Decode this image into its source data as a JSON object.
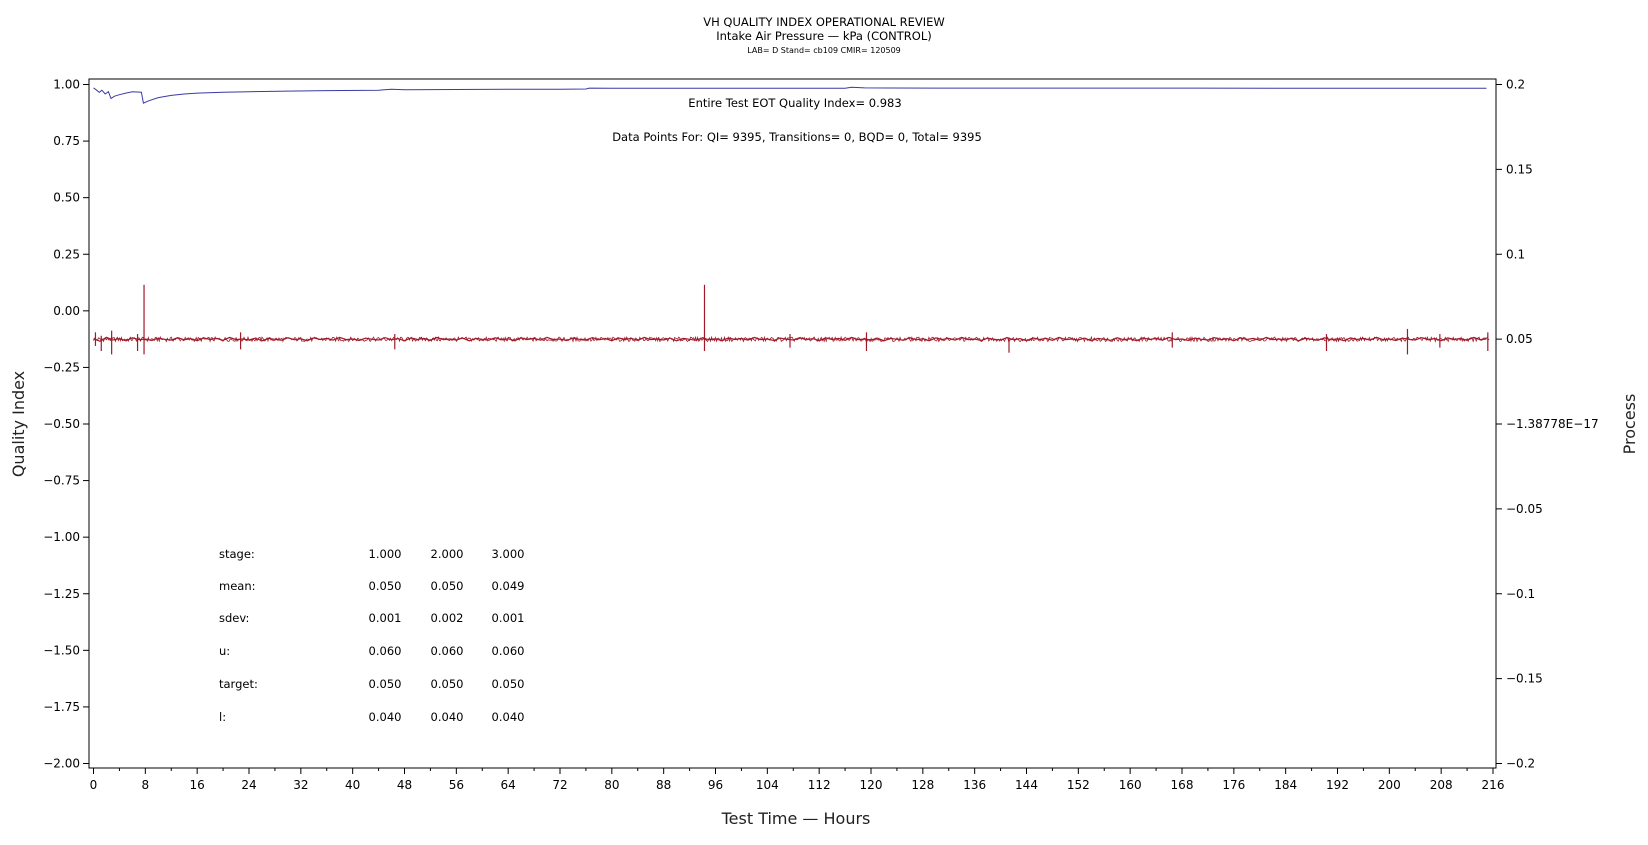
{
  "chart_data": {
    "type": "line",
    "title": "VH QUALITY INDEX OPERATIONAL REVIEW",
    "subtitle": "Intake Air Pressure — kPa (CONTROL)",
    "subtitle2": "LAB= D Stand= cb109 CMIR= 120509",
    "xlabel": "Test Time — Hours",
    "ylabel": "Quality Index",
    "y2label": "Process",
    "xlim": [
      0,
      216
    ],
    "ylim": [
      -2.0,
      1.0
    ],
    "y2lim": [
      -0.2,
      0.2
    ],
    "x_ticks": [
      0,
      8,
      16,
      24,
      32,
      40,
      48,
      56,
      64,
      72,
      80,
      88,
      96,
      104,
      112,
      120,
      128,
      136,
      144,
      152,
      160,
      168,
      176,
      184,
      192,
      200,
      208,
      216
    ],
    "y_ticks": [
      1.0,
      0.75,
      0.5,
      0.25,
      0.0,
      -0.25,
      -0.5,
      -0.75,
      -1.0,
      -1.25,
      -1.5,
      -1.75,
      -2.0
    ],
    "y_tick_labels": [
      "1.00",
      "0.75",
      "0.50",
      "0.25",
      "0.00",
      "−0.25",
      "−0.50",
      "−0.75",
      "−1.00",
      "−1.25",
      "−1.50",
      "−1.75",
      "−2.00"
    ],
    "y2_ticks": [
      0.2,
      0.15,
      0.1,
      0.05,
      0.0,
      -0.05,
      -0.1,
      -0.15,
      -0.2
    ],
    "y2_tick_labels": [
      "0.2",
      "0.15",
      "0.1",
      "0.05",
      "−1.38778E−17",
      "−0.05",
      "−0.1",
      "−0.15",
      "−0.2"
    ],
    "grid": false,
    "annotations": {
      "eot": "Entire Test EOT Quality Index=   0.983",
      "points": "Data Points For: QI=  9395, Transitions=     0, BQD=     0, Total=  9395"
    },
    "stats": {
      "labels": [
        "stage:",
        "mean:",
        "sdev:",
        "u:",
        "target:",
        "l:"
      ],
      "columns": [
        [
          "1.000",
          "0.050",
          "0.001",
          "0.060",
          "0.050",
          "0.040"
        ],
        [
          "2.000",
          "0.050",
          "0.002",
          "0.060",
          "0.050",
          "0.040"
        ],
        [
          "3.000",
          "0.049",
          "0.001",
          "0.060",
          "0.050",
          "0.040"
        ]
      ]
    },
    "series": [
      {
        "axis": "left",
        "color": "#3a3aa6",
        "points": [
          [
            0,
            0.985
          ],
          [
            0.5,
            0.975
          ],
          [
            0.9,
            0.965
          ],
          [
            1.3,
            0.975
          ],
          [
            1.8,
            0.958
          ],
          [
            2.3,
            0.968
          ],
          [
            2.7,
            0.938
          ],
          [
            3.2,
            0.948
          ],
          [
            4.0,
            0.955
          ],
          [
            5.0,
            0.962
          ],
          [
            6.0,
            0.968
          ],
          [
            7.4,
            0.966
          ],
          [
            7.7,
            0.918
          ],
          [
            8.5,
            0.928
          ],
          [
            10,
            0.942
          ],
          [
            12,
            0.952
          ],
          [
            14,
            0.958
          ],
          [
            16,
            0.962
          ],
          [
            20,
            0.966
          ],
          [
            24,
            0.968
          ],
          [
            30,
            0.971
          ],
          [
            36,
            0.973
          ],
          [
            44,
            0.975
          ],
          [
            46,
            0.979
          ],
          [
            48,
            0.977
          ],
          [
            56,
            0.978
          ],
          [
            64,
            0.979
          ],
          [
            72,
            0.979
          ],
          [
            76,
            0.98
          ],
          [
            76.5,
            0.984
          ],
          [
            80,
            0.983
          ],
          [
            96,
            0.983
          ],
          [
            116,
            0.983
          ],
          [
            117,
            0.988
          ],
          [
            119,
            0.985
          ],
          [
            130,
            0.984
          ],
          [
            150,
            0.984
          ],
          [
            170,
            0.984
          ],
          [
            190,
            0.983
          ],
          [
            210,
            0.983
          ],
          [
            215,
            0.983
          ]
        ]
      },
      {
        "axis": "right",
        "color": "#a01a2a",
        "points": [
          [
            0,
            0.0502
          ],
          [
            1.0,
            0.0488
          ],
          [
            2.0,
            0.0511
          ],
          [
            3.0,
            0.0495
          ],
          [
            4.0,
            0.0503
          ],
          [
            5.0,
            0.049
          ],
          [
            6.0,
            0.0508
          ],
          [
            7.0,
            0.0497
          ],
          [
            8.0,
            0.05
          ],
          [
            9.0,
            0.0492
          ],
          [
            10.0,
            0.0506
          ],
          [
            11.0,
            0.0499
          ],
          [
            12.0,
            0.0494
          ],
          [
            13.0,
            0.0509
          ],
          [
            14.0,
            0.0496
          ],
          [
            15.0,
            0.0503
          ],
          [
            16.0,
            0.0491
          ],
          [
            17.0,
            0.0507
          ],
          [
            18.0,
            0.0498
          ],
          [
            19.0,
            0.0504
          ],
          [
            20.0,
            0.0493
          ],
          [
            21.0,
            0.051
          ],
          [
            22.0,
            0.0497
          ],
          [
            23.0,
            0.0501
          ],
          [
            24.0,
            0.0495
          ],
          [
            25.0,
            0.0506
          ],
          [
            26.0,
            0.049
          ],
          [
            27.0,
            0.0504
          ],
          [
            28.0,
            0.0499
          ],
          [
            29.0,
            0.0493
          ],
          [
            30.0,
            0.0508
          ],
          [
            31.0,
            0.0496
          ],
          [
            32.0,
            0.0502
          ],
          [
            33.0,
            0.0491
          ],
          [
            34.0,
            0.0507
          ],
          [
            35.0,
            0.0498
          ],
          [
            36.0,
            0.0504
          ],
          [
            37.0,
            0.0494
          ],
          [
            38.0,
            0.051
          ],
          [
            39.0,
            0.0497
          ],
          [
            40.0,
            0.0501
          ],
          [
            41.0,
            0.0492
          ],
          [
            42.0,
            0.0506
          ],
          [
            43.0,
            0.0499
          ],
          [
            44.0,
            0.0495
          ],
          [
            45.0,
            0.0509
          ],
          [
            46.0,
            0.0496
          ],
          [
            47.0,
            0.0503
          ],
          [
            48.0,
            0.0491
          ],
          [
            49.0,
            0.0507
          ],
          [
            50.0,
            0.0498
          ],
          [
            51.0,
            0.0504
          ],
          [
            52.0,
            0.0493
          ],
          [
            53.0,
            0.051
          ],
          [
            54.0,
            0.0497
          ],
          [
            55.0,
            0.0501
          ],
          [
            56.0,
            0.0495
          ],
          [
            57.0,
            0.0506
          ],
          [
            58.0,
            0.049
          ],
          [
            59.0,
            0.0504
          ],
          [
            60.0,
            0.0499
          ],
          [
            61.0,
            0.0493
          ],
          [
            62.0,
            0.0508
          ],
          [
            63.0,
            0.0496
          ],
          [
            64.0,
            0.0502
          ],
          [
            65.0,
            0.0491
          ],
          [
            66.0,
            0.0507
          ],
          [
            67.0,
            0.0498
          ],
          [
            68.0,
            0.0504
          ],
          [
            69.0,
            0.0494
          ],
          [
            70.0,
            0.051
          ],
          [
            71.0,
            0.0497
          ],
          [
            72.0,
            0.0501
          ],
          [
            73.0,
            0.0492
          ],
          [
            74.0,
            0.0506
          ],
          [
            75.0,
            0.0499
          ],
          [
            76.0,
            0.0495
          ],
          [
            77.0,
            0.0509
          ],
          [
            78.0,
            0.0496
          ],
          [
            79.0,
            0.0503
          ],
          [
            80.0,
            0.0491
          ],
          [
            81.0,
            0.0507
          ],
          [
            82.0,
            0.0498
          ],
          [
            83.0,
            0.0504
          ],
          [
            84.0,
            0.0493
          ],
          [
            85.0,
            0.051
          ],
          [
            86.0,
            0.0497
          ],
          [
            87.0,
            0.0501
          ],
          [
            88.0,
            0.0495
          ],
          [
            89.0,
            0.0506
          ],
          [
            90.0,
            0.049
          ],
          [
            91.0,
            0.0504
          ],
          [
            92.0,
            0.0499
          ],
          [
            93.0,
            0.0493
          ],
          [
            94.0,
            0.0508
          ],
          [
            95.0,
            0.0496
          ],
          [
            96.0,
            0.0502
          ],
          [
            97.0,
            0.0491
          ],
          [
            98.0,
            0.0507
          ],
          [
            99.0,
            0.0498
          ],
          [
            100.0,
            0.0504
          ],
          [
            101.0,
            0.0494
          ],
          [
            102.0,
            0.051
          ],
          [
            103.0,
            0.0497
          ],
          [
            104.0,
            0.0501
          ],
          [
            105.0,
            0.0492
          ],
          [
            106.0,
            0.0506
          ],
          [
            107.0,
            0.0499
          ],
          [
            108.0,
            0.0495
          ],
          [
            109.0,
            0.0509
          ],
          [
            110.0,
            0.0496
          ],
          [
            111.0,
            0.0503
          ],
          [
            112.0,
            0.0491
          ],
          [
            113.0,
            0.0507
          ],
          [
            114.0,
            0.0498
          ],
          [
            115.0,
            0.0504
          ],
          [
            116.0,
            0.0493
          ],
          [
            117.0,
            0.051
          ],
          [
            118.0,
            0.0497
          ],
          [
            119.0,
            0.0501
          ],
          [
            120.0,
            0.0495
          ],
          [
            121.0,
            0.0506
          ],
          [
            122.0,
            0.049
          ],
          [
            123.0,
            0.0504
          ],
          [
            124.0,
            0.0499
          ],
          [
            125.0,
            0.0493
          ],
          [
            126.0,
            0.0508
          ],
          [
            127.0,
            0.0496
          ],
          [
            128.0,
            0.0502
          ],
          [
            129.0,
            0.0491
          ],
          [
            130.0,
            0.0507
          ],
          [
            131.0,
            0.0498
          ],
          [
            132.0,
            0.0504
          ],
          [
            133.0,
            0.0494
          ],
          [
            134.0,
            0.051
          ],
          [
            135.0,
            0.0497
          ],
          [
            136.0,
            0.0501
          ],
          [
            137.0,
            0.0492
          ],
          [
            138.0,
            0.0506
          ],
          [
            139.0,
            0.0499
          ],
          [
            140.0,
            0.0495
          ],
          [
            141.0,
            0.0509
          ],
          [
            142.0,
            0.0496
          ],
          [
            143.0,
            0.0503
          ],
          [
            144.0,
            0.0491
          ],
          [
            145.0,
            0.0507
          ],
          [
            146.0,
            0.0498
          ],
          [
            147.0,
            0.0504
          ],
          [
            148.0,
            0.0493
          ],
          [
            149.0,
            0.051
          ],
          [
            150.0,
            0.0497
          ],
          [
            151.0,
            0.0501
          ],
          [
            152.0,
            0.0495
          ],
          [
            153.0,
            0.0506
          ],
          [
            154.0,
            0.049
          ],
          [
            155.0,
            0.0504
          ],
          [
            156.0,
            0.0499
          ],
          [
            157.0,
            0.0493
          ],
          [
            158.0,
            0.0508
          ],
          [
            159.0,
            0.0496
          ],
          [
            160.0,
            0.0502
          ],
          [
            161.0,
            0.0491
          ],
          [
            162.0,
            0.0507
          ],
          [
            163.0,
            0.0498
          ],
          [
            164.0,
            0.0504
          ],
          [
            165.0,
            0.0494
          ],
          [
            166.0,
            0.051
          ],
          [
            167.0,
            0.0497
          ],
          [
            168.0,
            0.0501
          ],
          [
            169.0,
            0.0492
          ],
          [
            170.0,
            0.0506
          ],
          [
            171.0,
            0.0499
          ],
          [
            172.0,
            0.0495
          ],
          [
            173.0,
            0.0509
          ],
          [
            174.0,
            0.0496
          ],
          [
            175.0,
            0.0503
          ],
          [
            176.0,
            0.0491
          ],
          [
            177.0,
            0.0507
          ],
          [
            178.0,
            0.0498
          ],
          [
            179.0,
            0.0504
          ],
          [
            180.0,
            0.0493
          ],
          [
            181.0,
            0.051
          ],
          [
            182.0,
            0.0497
          ],
          [
            183.0,
            0.0501
          ],
          [
            184.0,
            0.0495
          ],
          [
            185.0,
            0.0506
          ],
          [
            186.0,
            0.049
          ],
          [
            187.0,
            0.0504
          ],
          [
            188.0,
            0.0499
          ],
          [
            189.0,
            0.0493
          ],
          [
            190.0,
            0.0508
          ],
          [
            191.0,
            0.0496
          ],
          [
            192.0,
            0.0502
          ],
          [
            193.0,
            0.0491
          ],
          [
            194.0,
            0.0507
          ],
          [
            195.0,
            0.0498
          ],
          [
            196.0,
            0.0504
          ],
          [
            197.0,
            0.0494
          ],
          [
            198.0,
            0.051
          ],
          [
            199.0,
            0.0497
          ],
          [
            200.0,
            0.0501
          ],
          [
            201.0,
            0.0492
          ],
          [
            202.0,
            0.0506
          ],
          [
            203.0,
            0.0499
          ],
          [
            204.0,
            0.0495
          ],
          [
            205.0,
            0.0509
          ],
          [
            206.0,
            0.0496
          ],
          [
            207.0,
            0.0503
          ],
          [
            208.0,
            0.0491
          ],
          [
            209.0,
            0.0507
          ],
          [
            210.0,
            0.0498
          ],
          [
            211.0,
            0.0504
          ],
          [
            212.0,
            0.0493
          ],
          [
            213.0,
            0.051
          ],
          [
            214.0,
            0.0497
          ],
          [
            215.0,
            0.0501
          ]
        ],
        "spikes": [
          [
            0.3,
            0.046,
            0.054
          ],
          [
            1.2,
            0.043,
            0.052
          ],
          [
            2.8,
            0.041,
            0.055
          ],
          [
            6.8,
            0.043,
            0.053
          ],
          [
            7.8,
            0.041,
            0.082
          ],
          [
            22.7,
            0.044,
            0.054
          ],
          [
            46.5,
            0.044,
            0.053
          ],
          [
            94.3,
            0.043,
            0.082
          ],
          [
            107.5,
            0.045,
            0.053
          ],
          [
            119.3,
            0.043,
            0.054
          ],
          [
            141.3,
            0.042,
            0.051
          ],
          [
            166.5,
            0.045,
            0.054
          ],
          [
            190.3,
            0.043,
            0.053
          ],
          [
            202.8,
            0.041,
            0.056
          ],
          [
            207.8,
            0.045,
            0.053
          ],
          [
            215.2,
            0.043,
            0.054
          ]
        ]
      }
    ]
  }
}
